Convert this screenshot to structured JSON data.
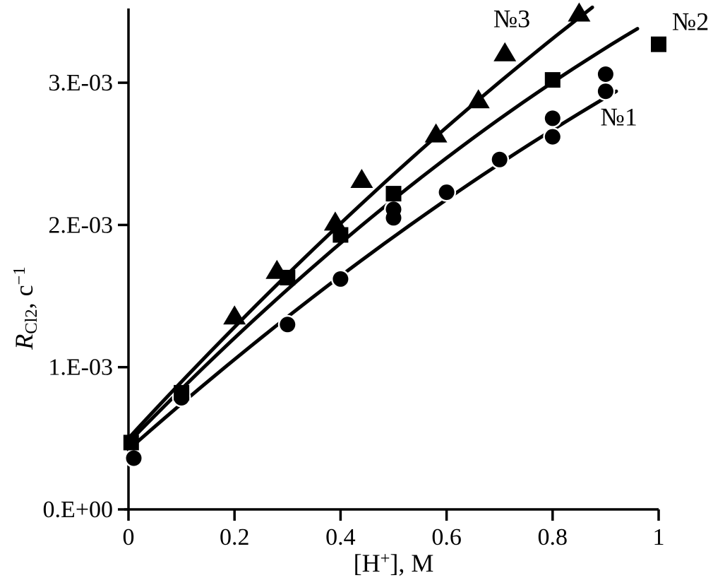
{
  "figure": {
    "background": "#ffffff",
    "text_color": "#000000",
    "accent_color": "#000000"
  },
  "chart_data": {
    "type": "scatter",
    "title": "",
    "xlabel": "[H+], M",
    "xlabel_parts": [
      {
        "t": "[H"
      },
      {
        "t": "+",
        "style": "sup"
      },
      {
        "t": "], M"
      }
    ],
    "ylabel": "R_Cl2, c^-1",
    "ylabel_parts": [
      {
        "t": "R",
        "style": "italic"
      },
      {
        "t": "Cl2",
        "style": "sub"
      },
      {
        "t": ", c"
      },
      {
        "t": "−1",
        "style": "sup"
      }
    ],
    "xlim": [
      0,
      1.02
    ],
    "ylim": [
      0,
      0.00355
    ],
    "grid": false,
    "legend_position": "inline-annotations",
    "x_ticks": [
      {
        "v": 0.0,
        "label": "0"
      },
      {
        "v": 0.2,
        "label": "0.2"
      },
      {
        "v": 0.4,
        "label": "0.4"
      },
      {
        "v": 0.6,
        "label": "0.6"
      },
      {
        "v": 0.8,
        "label": "0.8"
      },
      {
        "v": 1.0,
        "label": "1"
      }
    ],
    "y_ticks": [
      {
        "v": 0.0,
        "label": "0.E+00"
      },
      {
        "v": 0.001,
        "label": "1.E-03"
      },
      {
        "v": 0.002,
        "label": "2.E-03"
      },
      {
        "v": 0.003,
        "label": "3.E-03"
      }
    ],
    "series": [
      {
        "name": "№1",
        "marker": "circle",
        "color": "#000000",
        "points": [
          [
            0.01,
            0.00036
          ],
          [
            0.1,
            0.000785
          ],
          [
            0.3,
            0.0013
          ],
          [
            0.4,
            0.00162
          ],
          [
            0.5,
            0.00205
          ],
          [
            0.5,
            0.00211
          ],
          [
            0.6,
            0.00223
          ],
          [
            0.7,
            0.00246
          ],
          [
            0.8,
            0.00262
          ],
          [
            0.8,
            0.00275
          ],
          [
            0.9,
            0.00294
          ],
          [
            0.9,
            0.00306
          ]
        ],
        "fit_curve_anchors": [
          [
            0.0,
            0.00042
          ],
          [
            0.45,
            0.00178
          ],
          [
            0.92,
            0.00294
          ]
        ]
      },
      {
        "name": "№2",
        "marker": "square",
        "color": "#000000",
        "points": [
          [
            0.005,
            0.00047
          ],
          [
            0.1,
            0.00082
          ],
          [
            0.3,
            0.00163
          ],
          [
            0.4,
            0.00193
          ],
          [
            0.5,
            0.00222
          ],
          [
            0.8,
            0.00302
          ],
          [
            1.0,
            0.00327
          ]
        ],
        "fit_curve_anchors": [
          [
            0.0,
            0.00047
          ],
          [
            0.5,
            0.00218
          ],
          [
            0.96,
            0.00338
          ]
        ]
      },
      {
        "name": "№3",
        "marker": "triangle",
        "color": "#000000",
        "points": [
          [
            0.2,
            0.00136
          ],
          [
            0.28,
            0.00168
          ],
          [
            0.39,
            0.00202
          ],
          [
            0.44,
            0.00232
          ],
          [
            0.58,
            0.00264
          ],
          [
            0.66,
            0.00288
          ],
          [
            0.71,
            0.00321
          ],
          [
            0.85,
            0.00349
          ]
        ],
        "fit_curve_anchors": [
          [
            0.0,
            0.0005
          ],
          [
            0.44,
            0.00215
          ],
          [
            0.875,
            0.00353
          ]
        ]
      }
    ],
    "annotations": [
      {
        "text": "№3",
        "x": 0.723,
        "y": 0.00345
      },
      {
        "text": "№2",
        "x": 1.06,
        "y": 0.00343
      },
      {
        "text": "№1",
        "x": 0.925,
        "y": 0.00276
      }
    ]
  }
}
